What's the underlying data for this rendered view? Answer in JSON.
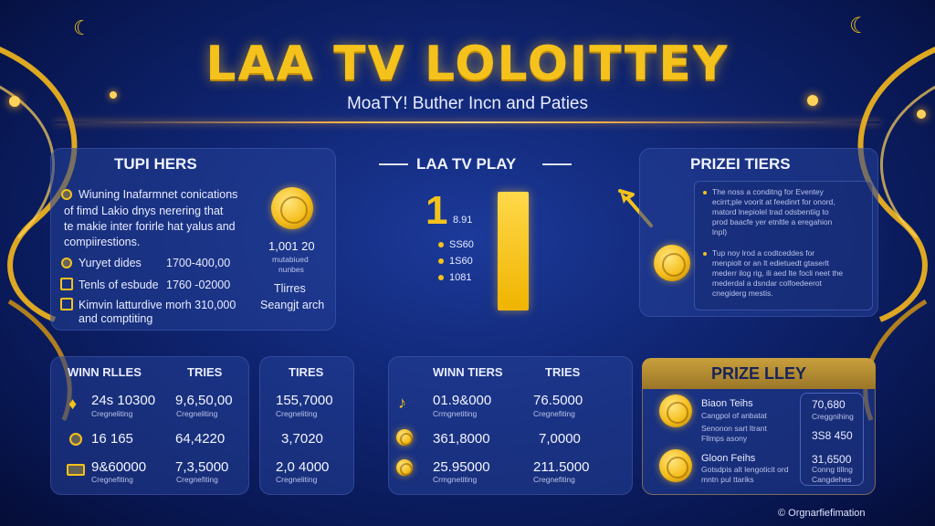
{
  "header": {
    "title": "LAA TV LOLOITTEY",
    "subtitle": "MoaTY! Buther Incn and Paties"
  },
  "left_panel": {
    "title": "TUPI HERS",
    "intro": [
      "Wiuning Inafarmnet conications",
      "of fimd Lakio dnys nerering that",
      "te makie inter forirle hat yalus and",
      "compiirestions."
    ],
    "rows": [
      {
        "label": "Yuryet dides",
        "value": "1700-400,00"
      },
      {
        "label": "Tenls of esbude",
        "value": "1760 -02000"
      },
      {
        "label": "Kimvin latturdive morh 310,000",
        "value": ""
      }
    ],
    "footer": "and comptiting",
    "coin_value": "1,001 20",
    "coin_caption": [
      "mutabiued",
      "nunbes"
    ],
    "tires": "Tlirres",
    "search": "Seangjt arch"
  },
  "center_panel": {
    "title": "LAA TV PLAY",
    "big_number": "1",
    "side_number": "8.91",
    "list": [
      "SS60",
      "1S60",
      "1081"
    ]
  },
  "right_panel": {
    "title": "PRIZEI TIERS",
    "para1": [
      "The noss a conditng for Eventey",
      "ecirrt;ple voorit at feedinrt for onord,",
      "matord lnepiolel trad odsbentiig to",
      "prod baacfe yer etnltle a eregahion",
      "lnpl)"
    ],
    "para2": [
      "Tup noy lrod a codtceddes for",
      "menpiolt or an lt edietuedt gtaserlt",
      "mederr ilog rig, ili aed lte focli neet the",
      "mederdal a dsndar colfoedeerot",
      "cnegiderg mestis."
    ]
  },
  "win_rules": {
    "col1": "WINN RLLES",
    "col2": "TRIES",
    "rows": [
      {
        "a": "24s 10300",
        "b": "9,6,50,00",
        "sub": "Cregneliting"
      },
      {
        "a": "16 165",
        "b": "64,4220",
        "sub": ""
      },
      {
        "a": "9&60000",
        "b": "7,3,5000",
        "sub": "Cregnefiting"
      }
    ]
  },
  "tires_panel": {
    "title": "TIRES",
    "rows": [
      "155,7000",
      "3,7020",
      "2,0 4000"
    ],
    "sub": "Cregneliting"
  },
  "win_tiers": {
    "col1": "WINN TIERS",
    "col2": "TRIES",
    "rows": [
      {
        "a": "01.9&000",
        "b": "76.5000",
        "sub_a": "Crmgnetiting",
        "sub_b": "Cregnefiting"
      },
      {
        "a": "361,8000",
        "b": "7,0000",
        "sub_a": "",
        "sub_b": ""
      },
      {
        "a": "25.95000",
        "b": "211.5000",
        "sub_a": "Crmgnetiting",
        "sub_b": "Cregnefiting"
      }
    ]
  },
  "prize_lley": {
    "title": "PRIZE LLEY",
    "items": [
      {
        "name": "Biaon Teihs",
        "desc": "Cangpol of anbatat",
        "value": "70,680",
        "sub": "Creggnihing"
      },
      {
        "name": "Senonon sart ltrant",
        "desc": "Fllmps asony",
        "value": "3S8 450",
        "sub": ""
      },
      {
        "name": "Gloon Feihs",
        "desc": "Gotsdpis alt lengoticit ord",
        "value": "31,6500",
        "sub": "Conng tillng"
      },
      {
        "name": "",
        "desc": "mntn pul ttariks",
        "value": "",
        "sub": "Cangdehes"
      }
    ]
  },
  "footer": {
    "copyright": "© Orgnarfiefimation"
  }
}
